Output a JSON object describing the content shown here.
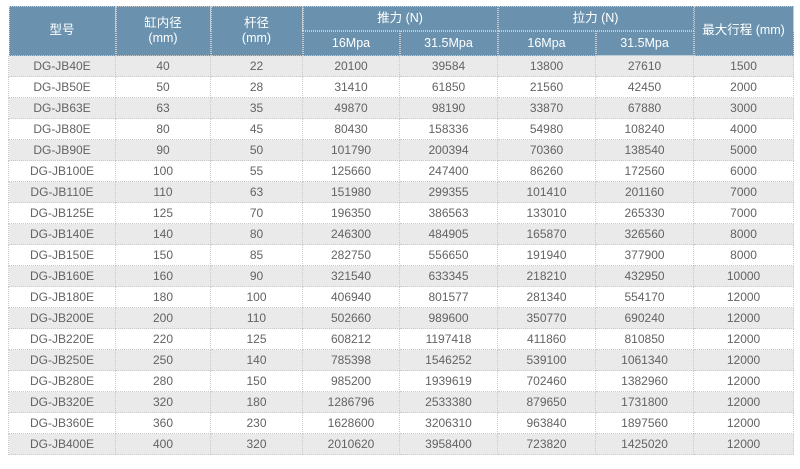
{
  "table": {
    "headers": {
      "model": "型号",
      "bore": "缸内径",
      "rod": "杆径",
      "unit_mm": "(mm)",
      "thrust": "推力 (N)",
      "pull": "拉力 (N)",
      "pressure_low": "16Mpa",
      "pressure_high": "31.5Mpa",
      "stroke": "最大行程 (mm)"
    },
    "rows": [
      [
        "DG-JB40E",
        "40",
        "22",
        "20100",
        "39584",
        "13800",
        "27610",
        "1500"
      ],
      [
        "DG-JB50E",
        "50",
        "28",
        "31410",
        "61850",
        "21560",
        "42450",
        "2000"
      ],
      [
        "DG-JB63E",
        "63",
        "35",
        "49870",
        "98190",
        "33870",
        "67880",
        "3000"
      ],
      [
        "DG-JB80E",
        "80",
        "45",
        "80430",
        "158336",
        "54980",
        "108240",
        "4000"
      ],
      [
        "DG-JB90E",
        "90",
        "50",
        "101790",
        "200394",
        "70360",
        "138540",
        "5000"
      ],
      [
        "DG-JB100E",
        "100",
        "55",
        "125660",
        "247400",
        "86260",
        "172560",
        "6000"
      ],
      [
        "DG-JB110E",
        "110",
        "63",
        "151980",
        "299355",
        "101410",
        "201160",
        "7000"
      ],
      [
        "DG-JB125E",
        "125",
        "70",
        "196350",
        "386563",
        "133010",
        "265330",
        "7000"
      ],
      [
        "DG-JB140E",
        "140",
        "80",
        "246300",
        "484905",
        "165870",
        "326560",
        "8000"
      ],
      [
        "DG-JB150E",
        "150",
        "85",
        "282750",
        "556650",
        "191940",
        "377900",
        "8000"
      ],
      [
        "DG-JB160E",
        "160",
        "90",
        "321540",
        "633345",
        "218210",
        "432950",
        "10000"
      ],
      [
        "DG-JB180E",
        "180",
        "100",
        "406940",
        "801577",
        "281340",
        "554170",
        "12000"
      ],
      [
        "DG-JB200E",
        "200",
        "110",
        "502660",
        "989600",
        "350770",
        "690240",
        "12000"
      ],
      [
        "DG-JB220E",
        "220",
        "125",
        "608212",
        "1197418",
        "411860",
        "810850",
        "12000"
      ],
      [
        "DG-JB250E",
        "250",
        "140",
        "785398",
        "1546252",
        "539100",
        "1061340",
        "12000"
      ],
      [
        "DG-JB280E",
        "280",
        "150",
        "985200",
        "1939619",
        "702460",
        "1382960",
        "12000"
      ],
      [
        "DG-JB320E",
        "320",
        "180",
        "1286796",
        "2533380",
        "879650",
        "1731800",
        "12000"
      ],
      [
        "DG-JB360E",
        "360",
        "230",
        "1628600",
        "3206310",
        "963840",
        "1897560",
        "12000"
      ],
      [
        "DG-JB400E",
        "400",
        "320",
        "2010620",
        "3958400",
        "723820",
        "1425020",
        "12000"
      ]
    ]
  },
  "colors": {
    "header_bg": "#6a92ae",
    "header_text": "#ffffff",
    "row_alt_bg": "#eaeaea",
    "row_bg": "#ffffff",
    "body_text": "#636363",
    "border": "#c9c9c9"
  }
}
